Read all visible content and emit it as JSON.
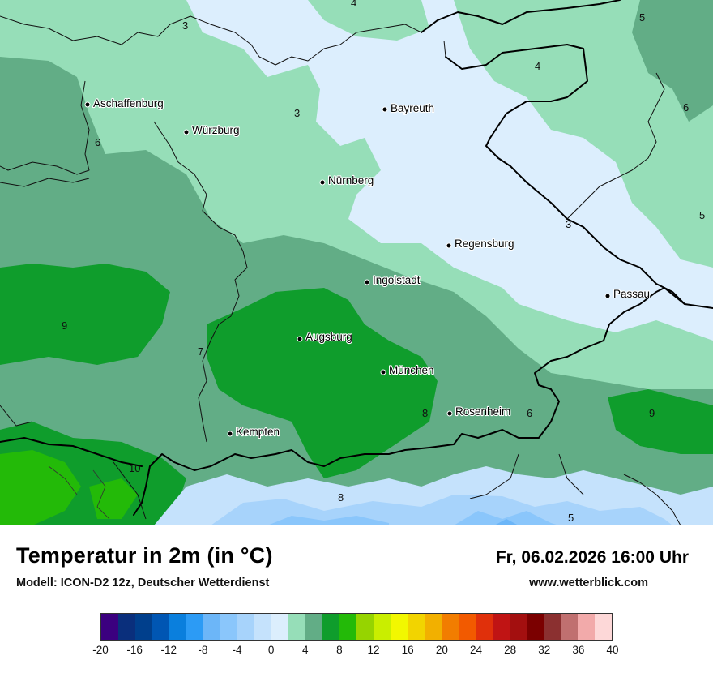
{
  "title": "Temperatur in 2m (in °C)",
  "model": "Modell: ICON-D2 12z, Deutscher Wetterdienst",
  "datetime": "Fr, 06.02.2026 16:00 Uhr",
  "website": "www.wetterblick.com",
  "cities": [
    "Aschaffenburg",
    "Würzburg",
    "Bayreuth",
    "Nürnberg",
    "Regensburg",
    "Ingolstadt",
    "Passau",
    "Augsburg",
    "München",
    "Rosenheim",
    "Kempten"
  ],
  "isoline_labels": [
    "4",
    "3",
    "5",
    "3",
    "4",
    "6",
    "6",
    "3",
    "5",
    "9",
    "7",
    "8",
    "6",
    "9",
    "10",
    "8",
    "5"
  ],
  "legend": {
    "colors": [
      "#3b007f",
      "#0a2f7c",
      "#003f8c",
      "#0056b3",
      "#0a7fdd",
      "#2c9bf5",
      "#6cb6f8",
      "#8ac6fb",
      "#a7d3fb",
      "#c5e2fc",
      "#dceefd",
      "#96deb8",
      "#62ad86",
      "#0f9d2c",
      "#23ba08",
      "#96d400",
      "#c9ee00",
      "#f2f700",
      "#f2d400",
      "#f2b000",
      "#f27d00",
      "#f25a00",
      "#e0300b",
      "#c01414",
      "#a30f0f",
      "#7b0000",
      "#8b3030",
      "#c07070",
      "#f2aaaa",
      "#fdd8d8"
    ],
    "ticks": [
      "-20",
      "-16",
      "-12",
      "-8",
      "-4",
      "0",
      "4",
      "8",
      "12",
      "16",
      "20",
      "24",
      "28",
      "32",
      "36",
      "40"
    ]
  }
}
